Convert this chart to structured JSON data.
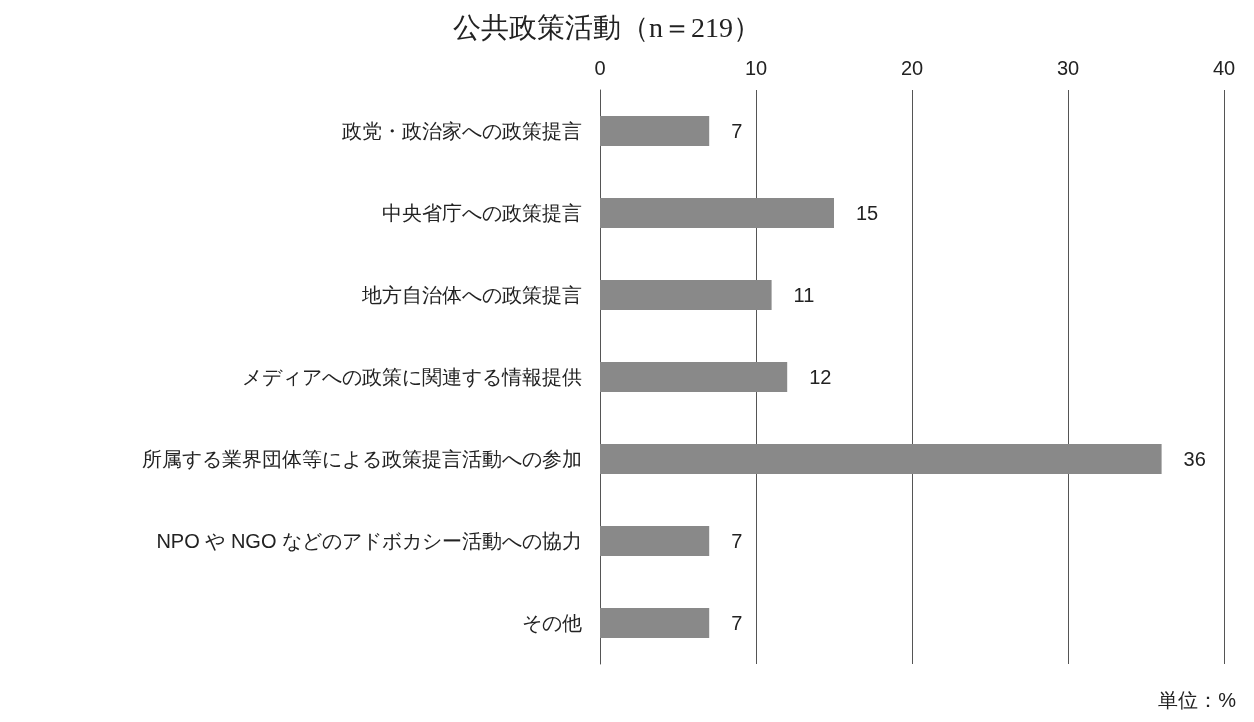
{
  "chart_data": {
    "type": "bar",
    "orientation": "horizontal",
    "title": "公共政策活動（n＝219）",
    "categories": [
      "政党・政治家への政策提言",
      "中央省庁への政策提言",
      "地方自治体への政策提言",
      "メディアへの政策に関連する情報提供",
      "所属する業界団体等による政策提言活動への参加",
      "NPO や NGO などのアドボカシー活動への協力",
      "その他"
    ],
    "values": [
      7,
      15,
      11,
      12,
      36,
      7,
      7
    ],
    "color": "#898989",
    "xlim": [
      0,
      40
    ],
    "xticks": [
      0,
      10,
      20,
      30,
      40
    ],
    "grid": "x",
    "data_labels": true,
    "annotations": [
      "単位：%"
    ]
  }
}
